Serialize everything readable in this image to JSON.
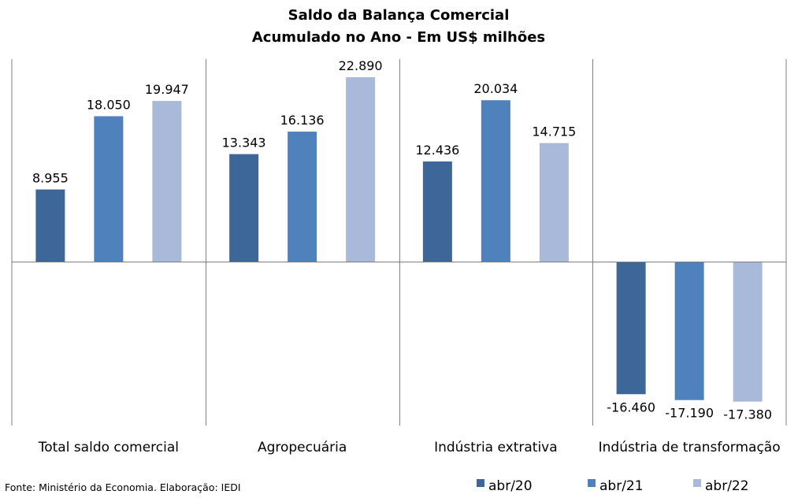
{
  "chart_data": {
    "type": "bar",
    "title": "Saldo da Balança Comercial",
    "subtitle": "Acumulado no Ano - Em US$ milhões",
    "categories": [
      "Total saldo comercial",
      "Agropecuária",
      "Indústria extrativa",
      "Indústria de transformação"
    ],
    "series": [
      {
        "name": "abr/20",
        "color": "#3d6799",
        "values": [
          8955,
          13343,
          12436,
          -16460
        ],
        "labels": [
          "8.955",
          "13.343",
          "12.436",
          "-16.460"
        ]
      },
      {
        "name": "abr/21",
        "color": "#4f81bd",
        "values": [
          18050,
          16136,
          20034,
          -17190
        ],
        "labels": [
          "18.050",
          "16.136",
          "20.034",
          "-17.190"
        ]
      },
      {
        "name": "abr/22",
        "color": "#a9b9d9",
        "values": [
          19947,
          22890,
          14715,
          -17380
        ],
        "labels": [
          "19.947",
          "22.890",
          "14.715",
          "-17.380"
        ]
      }
    ],
    "legend_position": "bottom-right",
    "grid": false
  },
  "source": "Fonte: Ministério da Economia. Elaboração: IEDI"
}
